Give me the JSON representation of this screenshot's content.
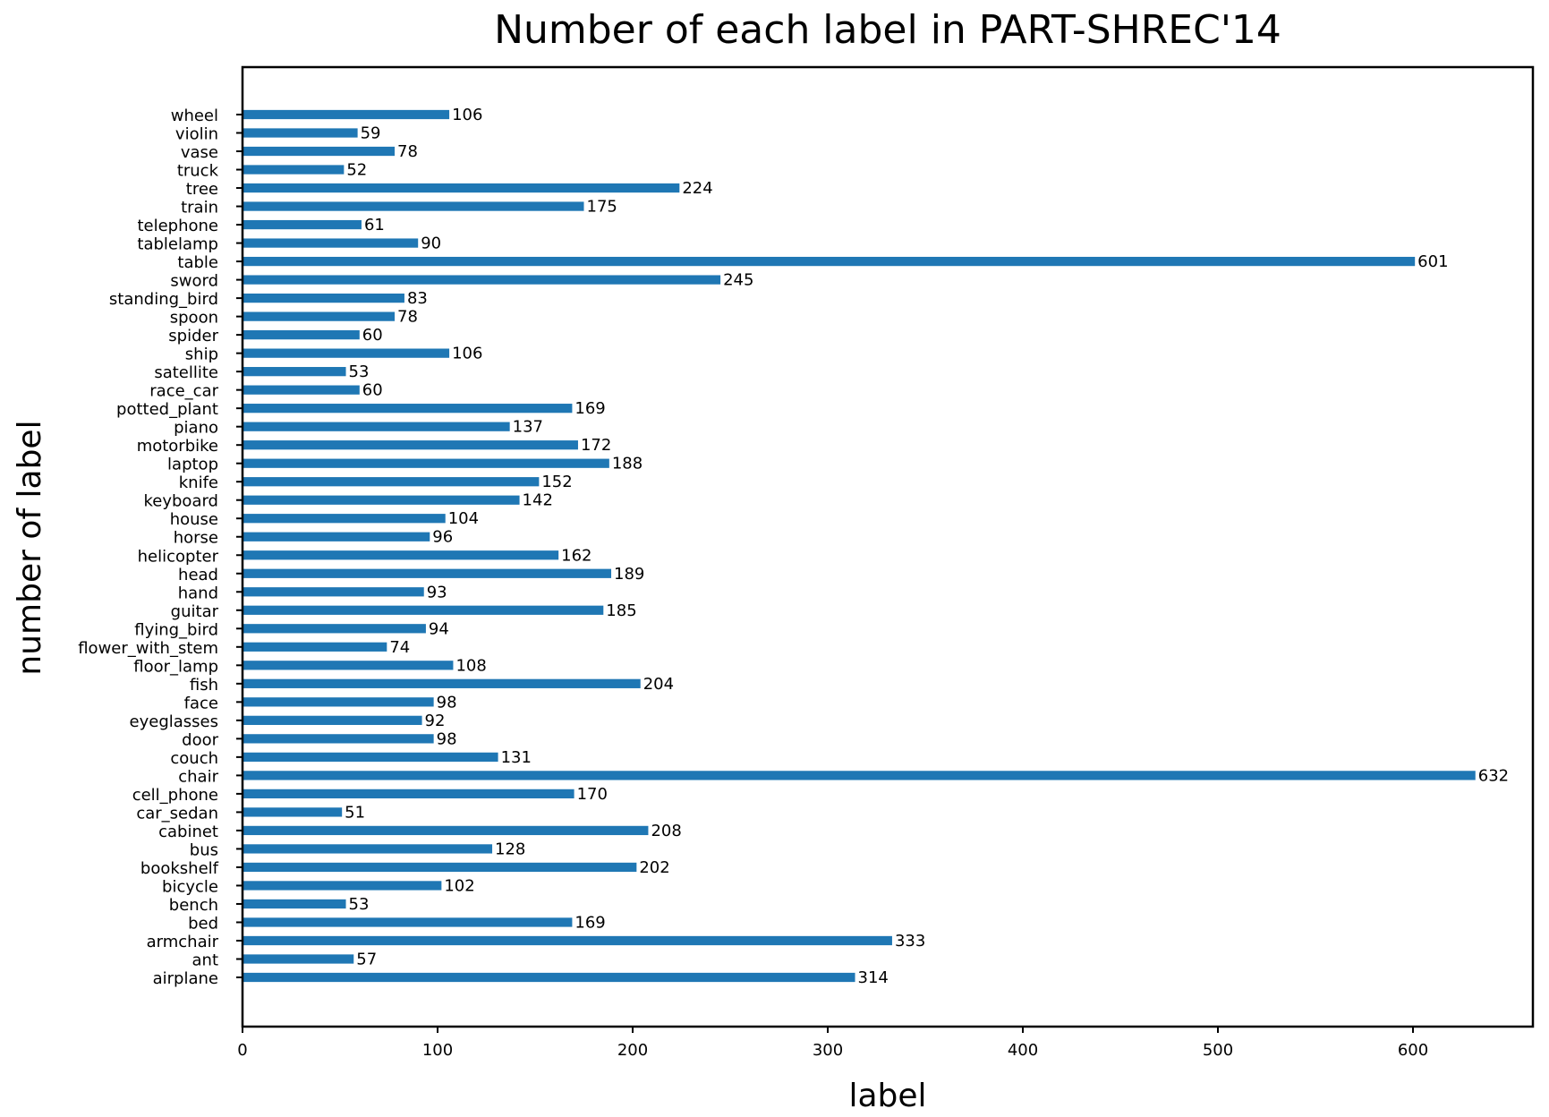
{
  "chart_data": {
    "type": "bar",
    "orientation": "horizontal",
    "title": "Number of each label in PART-SHREC'14",
    "xlabel": "label",
    "ylabel": "number of label",
    "xlim": [
      0,
      661
    ],
    "xticks": [
      0,
      100,
      200,
      300,
      400,
      500,
      600
    ],
    "grid": false,
    "bar_color": "#1f77b4",
    "categories": [
      "airplane",
      "ant",
      "armchair",
      "bed",
      "bench",
      "bicycle",
      "bookshelf",
      "bus",
      "cabinet",
      "car_sedan",
      "cell_phone",
      "chair",
      "couch",
      "door",
      "eyeglasses",
      "face",
      "fish",
      "floor_lamp",
      "flower_with_stem",
      "flying_bird",
      "guitar",
      "hand",
      "head",
      "helicopter",
      "horse",
      "house",
      "keyboard",
      "knife",
      "laptop",
      "motorbike",
      "piano",
      "potted_plant",
      "race_car",
      "satellite",
      "ship",
      "spider",
      "spoon",
      "standing_bird",
      "sword",
      "table",
      "tablelamp",
      "telephone",
      "train",
      "tree",
      "truck",
      "vase",
      "violin",
      "wheel"
    ],
    "values": [
      314,
      57,
      333,
      169,
      53,
      102,
      202,
      128,
      208,
      51,
      170,
      632,
      131,
      98,
      92,
      98,
      204,
      108,
      74,
      94,
      185,
      93,
      189,
      162,
      96,
      104,
      142,
      152,
      188,
      172,
      137,
      169,
      60,
      53,
      106,
      60,
      78,
      83,
      245,
      601,
      90,
      61,
      175,
      224,
      52,
      78,
      59,
      106
    ]
  }
}
